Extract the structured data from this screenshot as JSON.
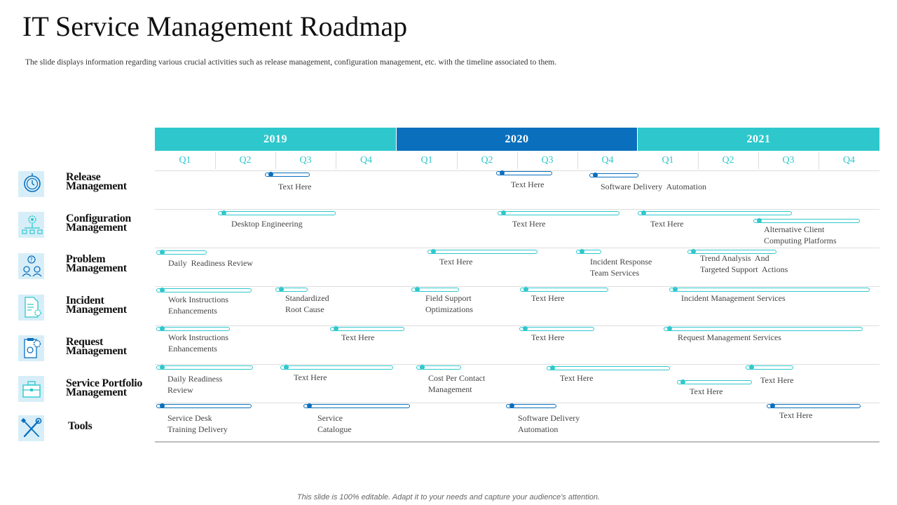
{
  "title": "IT Service Management Roadmap",
  "subtitle": "The slide displays  information regarding  various  crucial  activities  such as release management,  configuration management,  etc. with the timeline  associated to them.",
  "footer": "This slide is 100% editable. Adapt it to your needs and capture your audience's attention.",
  "years": [
    "2019",
    "2020",
    "2021"
  ],
  "quarters": [
    "Q1",
    "Q2",
    "Q3",
    "Q4",
    "Q1",
    "Q2",
    "Q3",
    "Q4",
    "Q1",
    "Q2",
    "Q3",
    "Q4"
  ],
  "categories": [
    {
      "line1": "Release",
      "line2": "Management",
      "icon": "timer-icon"
    },
    {
      "line1": "Configuration",
      "line2": "Management",
      "icon": "gear-network-icon"
    },
    {
      "line1": "Problem",
      "line2": "Management",
      "icon": "people-question-icon"
    },
    {
      "line1": "Incident",
      "line2": "Management",
      "icon": "document-gear-icon"
    },
    {
      "line1": "Request",
      "line2": "Management",
      "icon": "clipboard-gear-icon"
    },
    {
      "line1": "Service Portfolio",
      "line2": "Management",
      "icon": "briefcase-icon"
    },
    {
      "line1": "Tools",
      "line2": "",
      "icon": "wrench-screwdriver-icon"
    }
  ],
  "tasks": [
    {
      "label": "Text Here",
      "color": "blue"
    },
    {
      "label": "Text Here",
      "color": "blue"
    },
    {
      "label": "Software Delivery  Automation",
      "color": "blue"
    },
    {
      "label": "Desktop Engineering",
      "color": "teal"
    },
    {
      "label": "Text Here",
      "color": "teal"
    },
    {
      "label": "Text Here",
      "color": "teal"
    },
    {
      "label": "Alternative Client\nComputing Platforms",
      "color": "teal"
    },
    {
      "label": "Daily  Readiness Review",
      "color": "teal"
    },
    {
      "label": "Text Here",
      "color": "teal"
    },
    {
      "label": "Incident Response\nTeam Services",
      "color": "teal"
    },
    {
      "label": "Trend Analysis  And\nTargeted Support  Actions",
      "color": "teal"
    },
    {
      "label": "Work Instructions\nEnhancements",
      "color": "teal"
    },
    {
      "label": "Standardized\nRoot Cause",
      "color": "teal"
    },
    {
      "label": "Field Support\nOptimizations",
      "color": "teal"
    },
    {
      "label": "Text Here",
      "color": "teal"
    },
    {
      "label": "Incident Management Services",
      "color": "teal"
    },
    {
      "label": "Work Instructions\nEnhancements",
      "color": "teal"
    },
    {
      "label": "Text Here",
      "color": "teal"
    },
    {
      "label": "Text Here",
      "color": "teal"
    },
    {
      "label": "Request Management Services",
      "color": "teal"
    },
    {
      "label": "Daily Readiness\nReview",
      "color": "teal"
    },
    {
      "label": "Text Here",
      "color": "teal"
    },
    {
      "label": "Cost Per Contact\nManagement",
      "color": "teal"
    },
    {
      "label": "Text Here",
      "color": "teal"
    },
    {
      "label": "Text Here",
      "color": "teal"
    },
    {
      "label": "Text Here",
      "color": "teal"
    },
    {
      "label": "Service Desk\nTraining Delivery",
      "color": "blue"
    },
    {
      "label": "Service\nCatalogue",
      "color": "blue"
    },
    {
      "label": "Software Delivery\nAutomation",
      "color": "blue"
    },
    {
      "label": "Text Here",
      "color": "blue"
    }
  ],
  "colors": {
    "teal": "#2ec8cc",
    "blue": "#0a6fbd",
    "icon_bg": "#d7eef8"
  }
}
